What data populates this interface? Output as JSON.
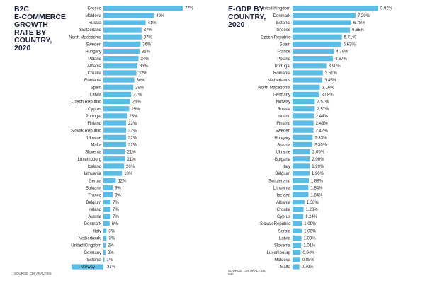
{
  "left_chart": {
    "title": "B2C\nE-COMMERCE\nGROWTH\nRATE BY\nCOUNTRY,\n2020",
    "source": "SOURCE: CMI ANALYSIS"
  },
  "right_chart": {
    "title": "E-GDP BY\nCOUNTRY,\n2020",
    "source": "SOURCE: CMI ANALYSIS,\nIMF"
  },
  "colors": {
    "bar": "#5bbde6",
    "text": "#222222"
  },
  "chart_data": [
    {
      "type": "bar",
      "orientation": "horizontal",
      "title": "B2C E-COMMERCE GROWTH RATE BY COUNTRY, 2020",
      "categories": [
        "Greece",
        "Moldova",
        "Russia",
        "Switzerland",
        "North Macedonia",
        "Sweden",
        "Hungary",
        "Poland",
        "Albania",
        "Croatia",
        "Romania",
        "Spain",
        "Latvia",
        "Czech Republic",
        "Cyprus",
        "Portugal",
        "Finland",
        "Slovak Republic",
        "Ukraine",
        "Malta",
        "Slovenia",
        "Luxembourg",
        "Iceland",
        "Lithuania",
        "Serbia",
        "Bulgaria",
        "France",
        "Belgium",
        "Ireland",
        "Austria",
        "Denmark",
        "Italy",
        "Netherlands",
        "United Kingdom",
        "Germany",
        "Estonia",
        "Norway"
      ],
      "values": [
        77,
        49,
        41,
        37,
        37,
        36,
        35,
        34,
        33,
        32,
        30,
        29,
        27,
        26,
        25,
        23,
        22,
        22,
        22,
        22,
        21,
        21,
        20,
        18,
        12,
        9,
        9,
        7,
        7,
        7,
        6,
        3,
        3,
        2,
        2,
        1,
        -31
      ],
      "labels": [
        "77%",
        "49%",
        "41%",
        "37%",
        "37%",
        "36%",
        "35%",
        "34%",
        "33%",
        "32%",
        "30%",
        "29%",
        "27%",
        "26%",
        "25%",
        "23%",
        "22%",
        "22%",
        "22%",
        "22%",
        "21%",
        "21%",
        "20%",
        "18%",
        "12%",
        "9%",
        "9%",
        "7%",
        "7%",
        "7%",
        "6%",
        "3%",
        "3%",
        "2%",
        "2%",
        "1%",
        "-31%"
      ],
      "xlim": [
        -31,
        77
      ]
    },
    {
      "type": "bar",
      "orientation": "horizontal",
      "title": "E-GDP BY COUNTRY, 2020",
      "categories": [
        "United Kingdom",
        "Denmark",
        "Estonia",
        "Greece",
        "Czech Republic",
        "Spain",
        "France",
        "Poland",
        "Portugal",
        "Romania",
        "Netherlands",
        "North Macedonia",
        "Germany",
        "Norway",
        "Russia",
        "Ireland",
        "Finland",
        "Sweden",
        "Hungary",
        "Austria",
        "Ukraine",
        "Bulgaria",
        "Italy",
        "Belgium",
        "Switzerland",
        "Lithuania",
        "Iceland",
        "Albania",
        "Croatia",
        "Cyprus",
        "Slovak Republic",
        "Serbia",
        "Latvia",
        "Slovenia",
        "Luxembourg",
        "Moldova",
        "Malta"
      ],
      "values": [
        9.92,
        7.29,
        6.78,
        6.65,
        5.71,
        5.63,
        4.79,
        4.67,
        3.9,
        3.51,
        3.45,
        3.16,
        3.08,
        2.57,
        2.57,
        2.44,
        2.43,
        2.42,
        2.33,
        2.3,
        2.05,
        2.0,
        1.99,
        1.96,
        1.88,
        1.84,
        1.84,
        1.38,
        1.28,
        1.24,
        1.09,
        1.08,
        1.03,
        1.01,
        0.94,
        0.88,
        0.79
      ],
      "labels": [
        "9.92%",
        "7.29%",
        "6.78%",
        "6.65%",
        "5.71%",
        "5.63%",
        "4.79%",
        "4.67%",
        "3.90%",
        "3.51%",
        "3.45%",
        "3.16%",
        "3.08%",
        "2.57%",
        "2.57%",
        "2.44%",
        "2.43%",
        "2.42%",
        "2.33%",
        "2.30%",
        "2.05%",
        "2.00%",
        "1.99%",
        "1.96%",
        "1.88%",
        "1.84%",
        "1.84%",
        "1.38%",
        "1.28%",
        "1.24%",
        "1.09%",
        "1.08%",
        "1.03%",
        "1.01%",
        "0.94%",
        "0.88%",
        "0.79%"
      ],
      "xlim": [
        0,
        9.92
      ]
    }
  ]
}
